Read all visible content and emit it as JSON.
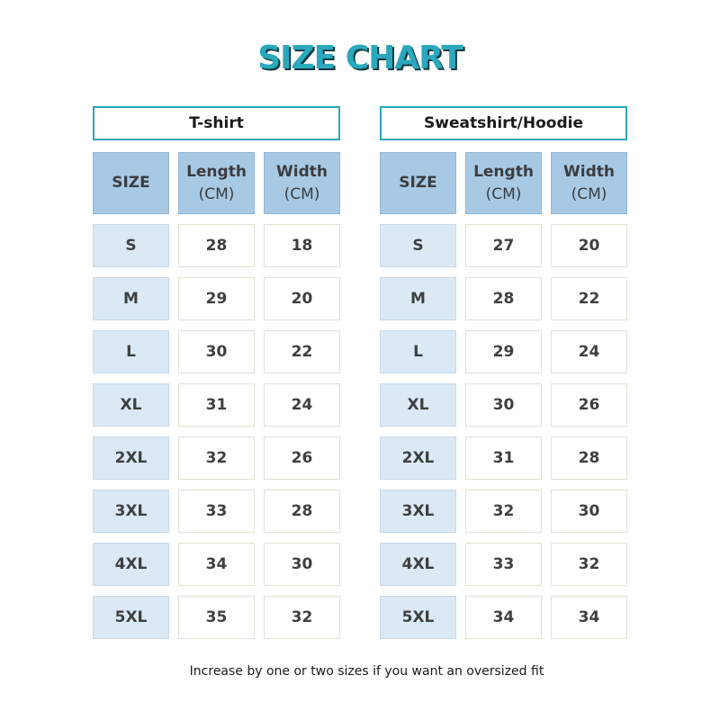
{
  "title": "SIZE CHART",
  "footnote": "Increase by one or two sizes if you want an oversized fit",
  "colors": {
    "title": "#2aa8bd",
    "header_cell": "#a8c9e3",
    "size_cell": "#dae9f4",
    "panel_border": "#2aa8bd"
  },
  "tables": [
    {
      "name": "T-shirt",
      "headers": [
        {
          "top": "SIZE",
          "sub": ""
        },
        {
          "top": "Length",
          "sub": "(CM)"
        },
        {
          "top": "Width",
          "sub": "(CM)"
        }
      ],
      "rows": [
        [
          "S",
          "28",
          "18"
        ],
        [
          "M",
          "29",
          "20"
        ],
        [
          "L",
          "30",
          "22"
        ],
        [
          "XL",
          "31",
          "24"
        ],
        [
          "2XL",
          "32",
          "26"
        ],
        [
          "3XL",
          "33",
          "28"
        ],
        [
          "4XL",
          "34",
          "30"
        ],
        [
          "5XL",
          "35",
          "32"
        ]
      ]
    },
    {
      "name": "Sweatshirt/Hoodie",
      "headers": [
        {
          "top": "SIZE",
          "sub": ""
        },
        {
          "top": "Length",
          "sub": "(CM)"
        },
        {
          "top": "Width",
          "sub": "(CM)"
        }
      ],
      "rows": [
        [
          "S",
          "27",
          "20"
        ],
        [
          "M",
          "28",
          "22"
        ],
        [
          "L",
          "29",
          "24"
        ],
        [
          "XL",
          "30",
          "26"
        ],
        [
          "2XL",
          "31",
          "28"
        ],
        [
          "3XL",
          "32",
          "30"
        ],
        [
          "4XL",
          "33",
          "32"
        ],
        [
          "5XL",
          "34",
          "34"
        ]
      ]
    }
  ]
}
